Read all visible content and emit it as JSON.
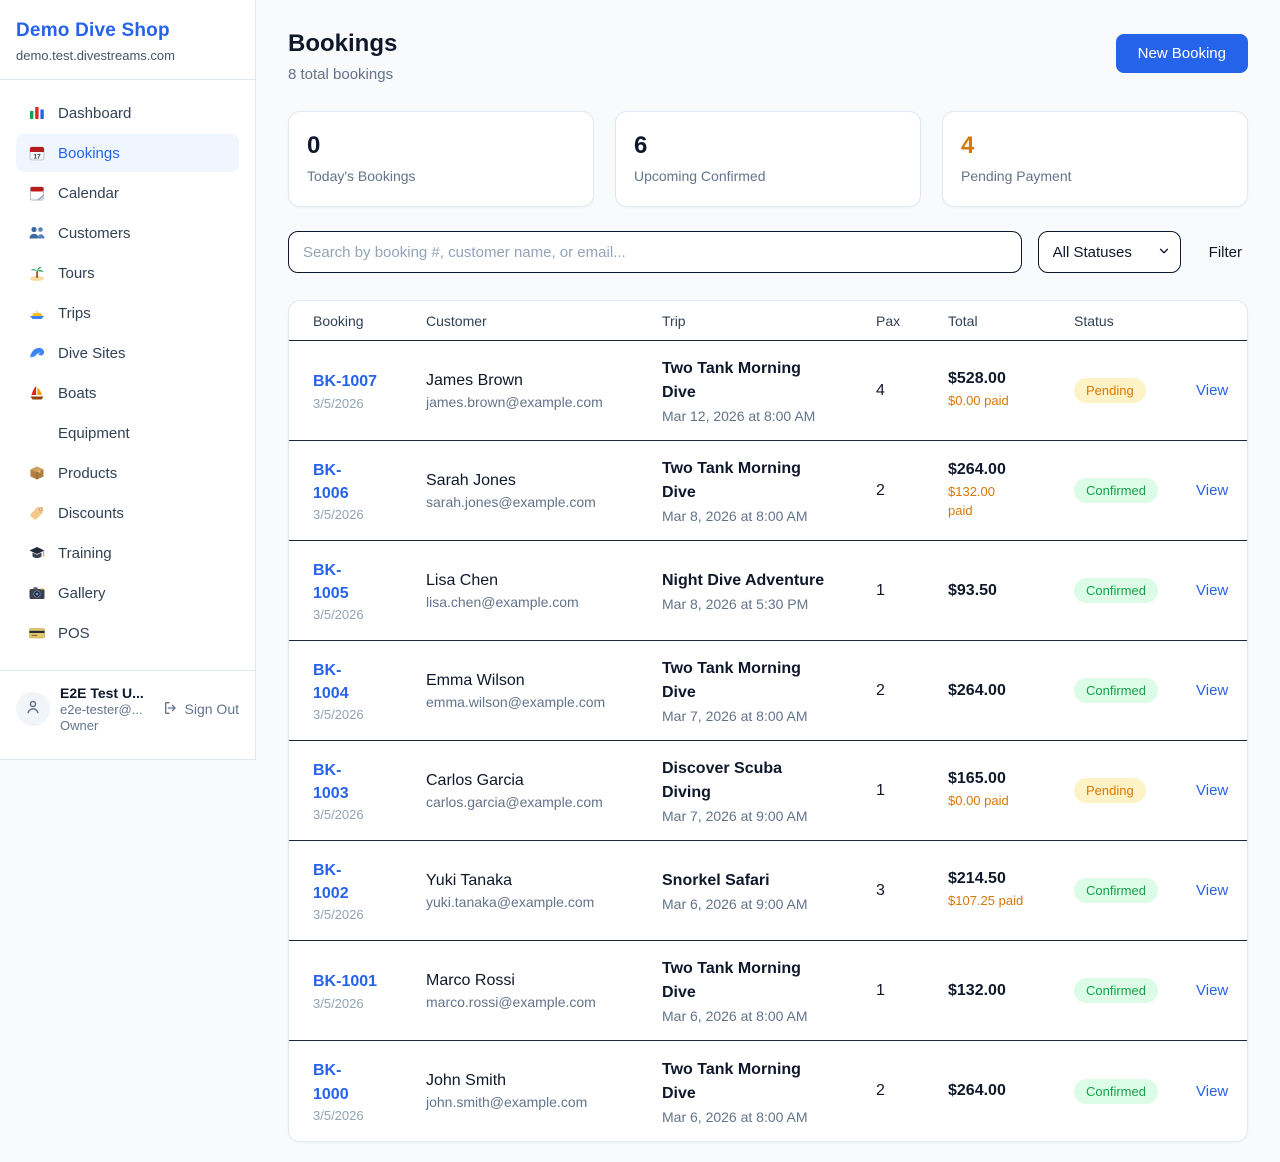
{
  "sidebar": {
    "brand": "Demo Dive Shop",
    "domain": "demo.test.divestreams.com",
    "nav": [
      {
        "label": "Dashboard",
        "icon": "dashboard-icon",
        "active": false
      },
      {
        "label": "Bookings",
        "icon": "bookings-icon",
        "active": true
      },
      {
        "label": "Calendar",
        "icon": "calendar-icon",
        "active": false
      },
      {
        "label": "Customers",
        "icon": "customers-icon",
        "active": false
      },
      {
        "label": "Tours",
        "icon": "tours-icon",
        "active": false
      },
      {
        "label": "Trips",
        "icon": "trips-icon",
        "active": false
      },
      {
        "label": "Dive Sites",
        "icon": "dive-sites-icon",
        "active": false
      },
      {
        "label": "Boats",
        "icon": "boats-icon",
        "active": false
      },
      {
        "label": "Equipment",
        "icon": "equipment-icon",
        "active": false
      },
      {
        "label": "Products",
        "icon": "products-icon",
        "active": false
      },
      {
        "label": "Discounts",
        "icon": "discounts-icon",
        "active": false
      },
      {
        "label": "Training",
        "icon": "training-icon",
        "active": false
      },
      {
        "label": "Gallery",
        "icon": "gallery-icon",
        "active": false
      },
      {
        "label": "POS",
        "icon": "pos-icon",
        "active": false
      }
    ],
    "user": {
      "name": "E2E Test U...",
      "email": "e2e-tester@...",
      "role": "Owner",
      "sign_out_label": "Sign Out"
    }
  },
  "header": {
    "title": "Bookings",
    "subtitle": "8 total bookings",
    "new_booking_label": "New Booking"
  },
  "stats": [
    {
      "value": "0",
      "label": "Today's Bookings",
      "value_color": "#0f172a"
    },
    {
      "value": "6",
      "label": "Upcoming Confirmed",
      "value_color": "#0f172a"
    },
    {
      "value": "4",
      "label": "Pending Payment",
      "value_color": "#d97706"
    }
  ],
  "filters": {
    "search_placeholder": "Search by booking #, customer name, or email...",
    "status_selected": "All Statuses",
    "filter_label": "Filter"
  },
  "table": {
    "columns": [
      "Booking",
      "Customer",
      "Trip",
      "Pax",
      "Total",
      "Status"
    ],
    "view_label": "View",
    "rows": [
      {
        "id_lines": [
          "BK-1007"
        ],
        "date": "3/5/2026",
        "customer": "James Brown",
        "email": "james.brown@example.com",
        "trip_lines": [
          "Two Tank Morning",
          "Dive"
        ],
        "trip_date": "Mar 12, 2026 at 8:00 AM",
        "pax": "4",
        "total": "$528.00",
        "paid_lines": [
          "$0.00 paid"
        ],
        "status": "Pending"
      },
      {
        "id_lines": [
          "BK-",
          "1006"
        ],
        "date": "3/5/2026",
        "customer": "Sarah Jones",
        "email": "sarah.jones@example.com",
        "trip_lines": [
          "Two Tank Morning",
          "Dive"
        ],
        "trip_date": "Mar 8, 2026 at 8:00 AM",
        "pax": "2",
        "total": "$264.00",
        "paid_lines": [
          "$132.00",
          "paid"
        ],
        "status": "Confirmed"
      },
      {
        "id_lines": [
          "BK-",
          "1005"
        ],
        "date": "3/5/2026",
        "customer": "Lisa Chen",
        "email": "lisa.chen@example.com",
        "trip_lines": [
          "Night Dive Adventure"
        ],
        "trip_date": "Mar 8, 2026 at 5:30 PM",
        "pax": "1",
        "total": "$93.50",
        "paid_lines": [],
        "status": "Confirmed"
      },
      {
        "id_lines": [
          "BK-",
          "1004"
        ],
        "date": "3/5/2026",
        "customer": "Emma Wilson",
        "email": "emma.wilson@example.com",
        "trip_lines": [
          "Two Tank Morning",
          "Dive"
        ],
        "trip_date": "Mar 7, 2026 at 8:00 AM",
        "pax": "2",
        "total": "$264.00",
        "paid_lines": [],
        "status": "Confirmed"
      },
      {
        "id_lines": [
          "BK-",
          "1003"
        ],
        "date": "3/5/2026",
        "customer": "Carlos Garcia",
        "email": "carlos.garcia@example.com",
        "trip_lines": [
          "Discover Scuba",
          "Diving"
        ],
        "trip_date": "Mar 7, 2026 at 9:00 AM",
        "pax": "1",
        "total": "$165.00",
        "paid_lines": [
          "$0.00 paid"
        ],
        "status": "Pending"
      },
      {
        "id_lines": [
          "BK-",
          "1002"
        ],
        "date": "3/5/2026",
        "customer": "Yuki Tanaka",
        "email": "yuki.tanaka@example.com",
        "trip_lines": [
          "Snorkel Safari"
        ],
        "trip_date": "Mar 6, 2026 at 9:00 AM",
        "pax": "3",
        "total": "$214.50",
        "paid_lines": [
          "$107.25 paid"
        ],
        "status": "Confirmed"
      },
      {
        "id_lines": [
          "BK-1001"
        ],
        "date": "3/5/2026",
        "customer": "Marco Rossi",
        "email": "marco.rossi@example.com",
        "trip_lines": [
          "Two Tank Morning",
          "Dive"
        ],
        "trip_date": "Mar 6, 2026 at 8:00 AM",
        "pax": "1",
        "total": "$132.00",
        "paid_lines": [],
        "status": "Confirmed"
      },
      {
        "id_lines": [
          "BK-",
          "1000"
        ],
        "date": "3/5/2026",
        "customer": "John Smith",
        "email": "john.smith@example.com",
        "trip_lines": [
          "Two Tank Morning",
          "Dive"
        ],
        "trip_date": "Mar 6, 2026 at 8:00 AM",
        "pax": "2",
        "total": "$264.00",
        "paid_lines": [],
        "status": "Confirmed"
      }
    ]
  },
  "colors": {
    "accent_blue": "#2563eb",
    "pending_text": "#d97706",
    "pending_bg": "#fef3c7",
    "confirmed_text": "#16a34a",
    "confirmed_bg": "#dcfce7",
    "row_divider": "#1e293b",
    "page_bg": "#f8fafc"
  }
}
